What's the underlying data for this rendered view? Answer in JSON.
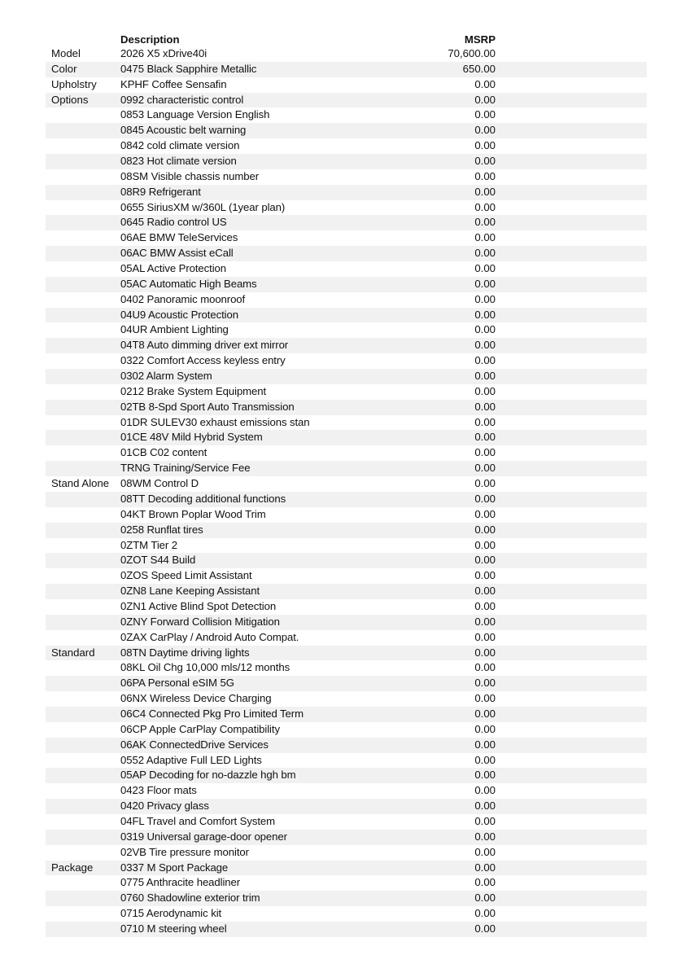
{
  "header": {
    "description": "Description",
    "msrp": "MSRP"
  },
  "rows": [
    {
      "category": "Model",
      "description": "2026 X5 xDrive40i",
      "msrp": "70,600.00"
    },
    {
      "category": "Color",
      "description": "0475 Black Sapphire Metallic",
      "msrp": "650.00"
    },
    {
      "category": "Upholstry",
      "description": "KPHF Coffee Sensafin",
      "msrp": "0.00"
    },
    {
      "category": "Options",
      "description": "0992 characteristic control",
      "msrp": "0.00"
    },
    {
      "category": "",
      "description": "0853 Language Version English",
      "msrp": "0.00"
    },
    {
      "category": "",
      "description": "0845 Acoustic belt warning",
      "msrp": "0.00"
    },
    {
      "category": "",
      "description": "0842 cold climate version",
      "msrp": "0.00"
    },
    {
      "category": "",
      "description": "0823 Hot climate version",
      "msrp": "0.00"
    },
    {
      "category": "",
      "description": "08SM Visible chassis number",
      "msrp": "0.00"
    },
    {
      "category": "",
      "description": "08R9 Refrigerant",
      "msrp": "0.00"
    },
    {
      "category": "",
      "description": "0655 SiriusXM w/360L (1year plan)",
      "msrp": "0.00"
    },
    {
      "category": "",
      "description": "0645 Radio control US",
      "msrp": "0.00"
    },
    {
      "category": "",
      "description": "06AE BMW TeleServices",
      "msrp": "0.00"
    },
    {
      "category": "",
      "description": "06AC BMW Assist eCall",
      "msrp": "0.00"
    },
    {
      "category": "",
      "description": "05AL Active Protection",
      "msrp": "0.00"
    },
    {
      "category": "",
      "description": "05AC Automatic High Beams",
      "msrp": "0.00"
    },
    {
      "category": "",
      "description": "0402 Panoramic moonroof",
      "msrp": "0.00"
    },
    {
      "category": "",
      "description": "04U9 Acoustic Protection",
      "msrp": "0.00"
    },
    {
      "category": "",
      "description": "04UR Ambient Lighting",
      "msrp": "0.00"
    },
    {
      "category": "",
      "description": "04T8 Auto dimming driver ext mirror",
      "msrp": "0.00"
    },
    {
      "category": "",
      "description": "0322 Comfort Access keyless entry",
      "msrp": "0.00"
    },
    {
      "category": "",
      "description": "0302 Alarm System",
      "msrp": "0.00"
    },
    {
      "category": "",
      "description": "0212 Brake System Equipment",
      "msrp": "0.00"
    },
    {
      "category": "",
      "description": "02TB 8-Spd Sport Auto Transmission",
      "msrp": "0.00"
    },
    {
      "category": "",
      "description": "01DR SULEV30 exhaust emissions stan",
      "msrp": "0.00"
    },
    {
      "category": "",
      "description": "01CE 48V Mild Hybrid System",
      "msrp": "0.00"
    },
    {
      "category": "",
      "description": "01CB C02 content",
      "msrp": "0.00"
    },
    {
      "category": "",
      "description": "TRNG Training/Service Fee",
      "msrp": "0.00"
    },
    {
      "category": "Stand Alone",
      "description": "08WM Control D",
      "msrp": "0.00"
    },
    {
      "category": "",
      "description": "08TT Decoding additional functions",
      "msrp": "0.00"
    },
    {
      "category": "",
      "description": "04KT Brown Poplar Wood Trim",
      "msrp": "0.00"
    },
    {
      "category": "",
      "description": "0258 Runflat tires",
      "msrp": "0.00"
    },
    {
      "category": "",
      "description": "0ZTM Tier 2",
      "msrp": "0.00"
    },
    {
      "category": "",
      "description": "0ZOT S44 Build",
      "msrp": "0.00"
    },
    {
      "category": "",
      "description": "0ZOS Speed Limit Assistant",
      "msrp": "0.00"
    },
    {
      "category": "",
      "description": "0ZN8 Lane Keeping Assistant",
      "msrp": "0.00"
    },
    {
      "category": "",
      "description": "0ZN1 Active Blind Spot Detection",
      "msrp": "0.00"
    },
    {
      "category": "",
      "description": "0ZNY Forward Collision Mitigation",
      "msrp": "0.00"
    },
    {
      "category": "",
      "description": "0ZAX CarPlay / Android Auto Compat.",
      "msrp": "0.00"
    },
    {
      "category": "Standard",
      "description": "08TN Daytime driving lights",
      "msrp": "0.00"
    },
    {
      "category": "",
      "description": "08KL Oil Chg 10,000 mls/12 months",
      "msrp": "0.00"
    },
    {
      "category": "",
      "description": "06PA Personal eSIM 5G",
      "msrp": "0.00"
    },
    {
      "category": "",
      "description": "06NX Wireless Device Charging",
      "msrp": "0.00"
    },
    {
      "category": "",
      "description": "06C4 Connected Pkg Pro Limited Term",
      "msrp": "0.00"
    },
    {
      "category": "",
      "description": "06CP Apple CarPlay Compatibility",
      "msrp": "0.00"
    },
    {
      "category": "",
      "description": "06AK ConnectedDrive Services",
      "msrp": "0.00"
    },
    {
      "category": "",
      "description": "0552 Adaptive Full LED Lights",
      "msrp": "0.00"
    },
    {
      "category": "",
      "description": "05AP Decoding for no-dazzle hgh bm",
      "msrp": "0.00"
    },
    {
      "category": "",
      "description": "0423 Floor mats",
      "msrp": "0.00"
    },
    {
      "category": "",
      "description": "0420 Privacy glass",
      "msrp": "0.00"
    },
    {
      "category": "",
      "description": "04FL Travel and Comfort System",
      "msrp": "0.00"
    },
    {
      "category": "",
      "description": "0319 Universal garage-door opener",
      "msrp": "0.00"
    },
    {
      "category": "",
      "description": "02VB Tire pressure monitor",
      "msrp": "0.00"
    },
    {
      "category": "Package",
      "description": "0337 M Sport Package",
      "msrp": "0.00"
    },
    {
      "category": "",
      "description": "0775 Anthracite headliner",
      "msrp": "0.00"
    },
    {
      "category": "",
      "description": "0760 Shadowline exterior trim",
      "msrp": "0.00"
    },
    {
      "category": "",
      "description": "0715 Aerodynamic kit",
      "msrp": "0.00"
    },
    {
      "category": "",
      "description": "0710 M steering wheel",
      "msrp": "0.00"
    }
  ]
}
